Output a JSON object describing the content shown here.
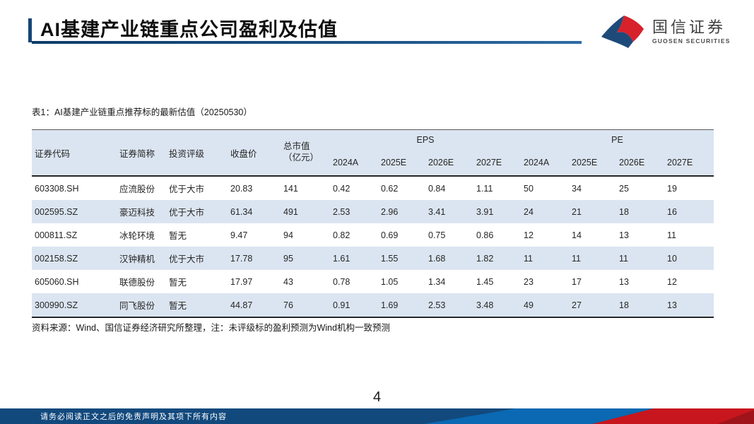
{
  "page": {
    "title": "AI基建产业链重点公司盈利及估值",
    "page_number": "4"
  },
  "logo": {
    "name": "国信证券",
    "subtitle": "GUOSEN SECURITIES",
    "mark": "guosen-flag-mark",
    "colors": {
      "blue": "#1E4A7A",
      "red": "#D7212B"
    }
  },
  "table": {
    "caption": "表1：AI基建产业链重点推荐标的最新估值（20250530）",
    "columns": [
      "证券代码",
      "证券简称",
      "投资评级",
      "收盘价"
    ],
    "market_cap_header": {
      "line1": "总市值",
      "line2": "（亿元）"
    },
    "groups": {
      "eps": "EPS",
      "pe": "PE"
    },
    "year_columns": [
      "2024A",
      "2025E",
      "2026E",
      "2027E"
    ],
    "rows": [
      [
        "603308.SH",
        "应流股份",
        "优于大市",
        "20.83",
        "141",
        "0.42",
        "0.62",
        "0.84",
        "1.11",
        "50",
        "34",
        "25",
        "19"
      ],
      [
        "002595.SZ",
        "豪迈科技",
        "优于大市",
        "61.34",
        "491",
        "2.53",
        "2.96",
        "3.41",
        "3.91",
        "24",
        "21",
        "18",
        "16"
      ],
      [
        "000811.SZ",
        "冰轮环境",
        "暂无",
        "9.47",
        "94",
        "0.82",
        "0.69",
        "0.75",
        "0.86",
        "12",
        "14",
        "13",
        "11"
      ],
      [
        "002158.SZ",
        "汉钟精机",
        "优于大市",
        "17.78",
        "95",
        "1.61",
        "1.55",
        "1.68",
        "1.82",
        "11",
        "11",
        "11",
        "10"
      ],
      [
        "605060.SH",
        "联德股份",
        "暂无",
        "17.97",
        "43",
        "0.78",
        "1.05",
        "1.34",
        "1.45",
        "23",
        "17",
        "13",
        "12"
      ],
      [
        "300990.SZ",
        "同飞股份",
        "暂无",
        "44.87",
        "76",
        "0.91",
        "1.69",
        "2.53",
        "3.48",
        "49",
        "27",
        "18",
        "13"
      ]
    ],
    "footnote": "资料来源：Wind、国信证券经济研究所整理，注：未评级标的盈利预测为Wind机构一致预测",
    "stripe_color": "#DBE5F1"
  },
  "footer": {
    "disclaimer": "请务必阅读正文之后的免责声明及其项下所有内容",
    "bar_colors": {
      "navy": "#12497D",
      "blue": "#0A69B2",
      "red": "#C8161E",
      "dark_red": "#9E141A"
    }
  },
  "theme": {
    "accent_navy": "#164674"
  }
}
